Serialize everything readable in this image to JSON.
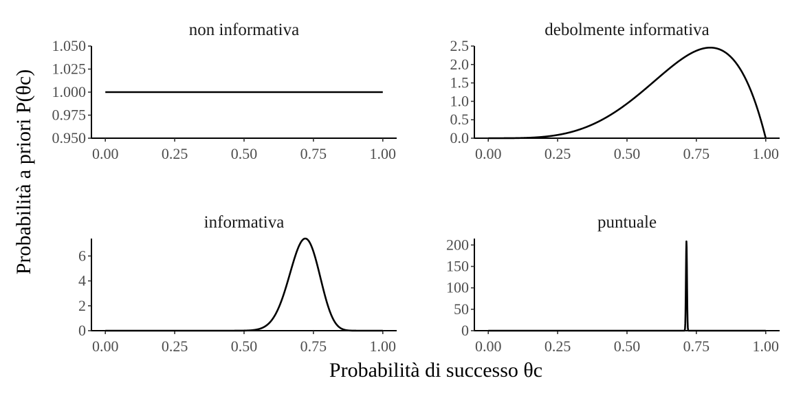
{
  "chart_data": {
    "type": "line",
    "xlabel": "Probabilità di successo θc",
    "ylabel": "Probabilità a priori P(θc)",
    "panels": [
      {
        "title": "non informativa",
        "distribution": "beta",
        "alpha": 1,
        "beta": 1,
        "xlim": [
          0,
          1
        ],
        "ylim": [
          0.95,
          1.05
        ],
        "xticks": [
          0,
          0.25,
          0.5,
          0.75,
          1
        ],
        "xtick_labels": [
          "0.00",
          "0.25",
          "0.50",
          "0.75",
          "1.00"
        ],
        "yticks": [
          0.95,
          0.975,
          1.0,
          1.025,
          1.05
        ],
        "ytick_labels": [
          "0.950",
          "0.975",
          "1.000",
          "1.025",
          "1.050"
        ]
      },
      {
        "title": "debolmente informativa",
        "distribution": "beta",
        "alpha": 5,
        "beta": 2,
        "xlim": [
          0,
          1
        ],
        "ylim": [
          0,
          2.5
        ],
        "xticks": [
          0,
          0.25,
          0.5,
          0.75,
          1
        ],
        "xtick_labels": [
          "0.00",
          "0.25",
          "0.50",
          "0.75",
          "1.00"
        ],
        "yticks": [
          0,
          0.5,
          1.0,
          1.5,
          2.0,
          2.5
        ],
        "ytick_labels": [
          "0.0",
          "0.5",
          "1.0",
          "1.5",
          "2.0",
          "2.5"
        ]
      },
      {
        "title": "informativa",
        "distribution": "beta",
        "alpha": 50,
        "beta": 20,
        "xlim": [
          0,
          1
        ],
        "ylim": [
          0,
          7.4
        ],
        "xticks": [
          0,
          0.25,
          0.5,
          0.75,
          1
        ],
        "xtick_labels": [
          "0.00",
          "0.25",
          "0.50",
          "0.75",
          "1.00"
        ],
        "yticks": [
          0,
          2,
          4,
          6
        ],
        "ytick_labels": [
          "0",
          "2",
          "4",
          "6"
        ]
      },
      {
        "title": "puntuale",
        "distribution": "beta",
        "alpha": 40000,
        "beta": 16000,
        "xlim": [
          0,
          1
        ],
        "ylim": [
          0,
          215
        ],
        "xticks": [
          0,
          0.25,
          0.5,
          0.75,
          1
        ],
        "xtick_labels": [
          "0.00",
          "0.25",
          "0.50",
          "0.75",
          "1.00"
        ],
        "yticks": [
          0,
          50,
          100,
          150,
          200
        ],
        "ytick_labels": [
          "0",
          "50",
          "100",
          "150",
          "200"
        ]
      }
    ]
  }
}
